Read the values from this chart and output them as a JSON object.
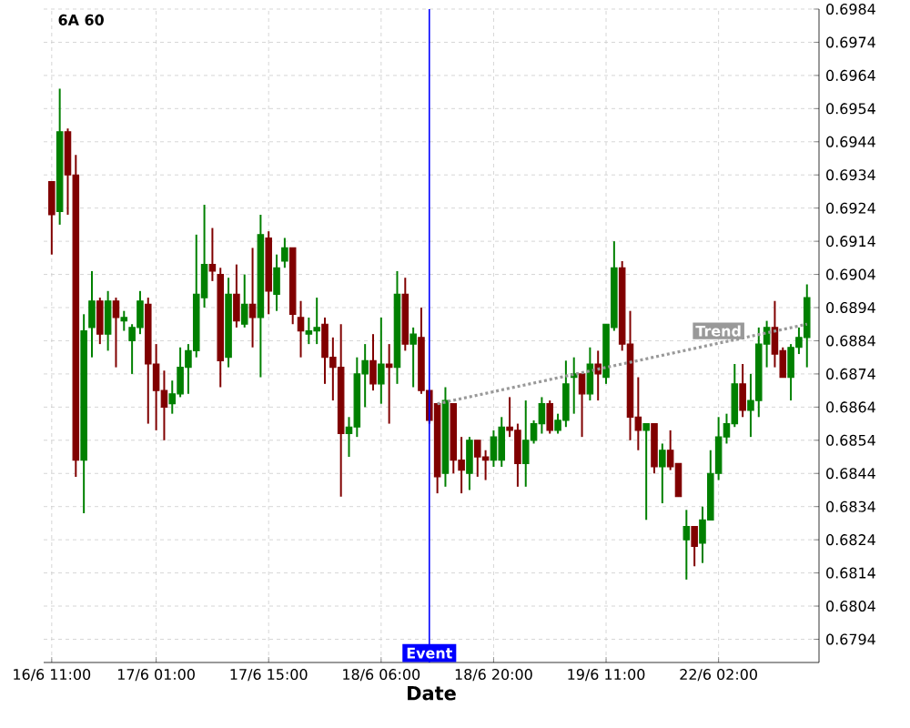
{
  "chart_data": {
    "type": "candlestick",
    "title": "6A 60",
    "xlabel": "Date",
    "categories": [
      "16/6 11:00",
      null,
      null,
      null,
      null,
      null,
      null,
      null,
      null,
      null,
      null,
      null,
      null,
      "17/6 01:00",
      null,
      null,
      null,
      null,
      null,
      null,
      null,
      null,
      null,
      null,
      null,
      null,
      null,
      "17/6 15:00",
      null,
      null,
      null,
      null,
      null,
      null,
      null,
      null,
      null,
      null,
      null,
      null,
      null,
      "18/6 06:00",
      null,
      null,
      null,
      null,
      null,
      null,
      null,
      null,
      null,
      null,
      null,
      null,
      null,
      "18/6 20:00",
      null,
      null,
      null,
      null,
      null,
      null,
      null,
      null,
      null,
      null,
      null,
      null,
      null,
      "19/6 11:00",
      null,
      null,
      null,
      null,
      null,
      null,
      null,
      null,
      null,
      null,
      null,
      null,
      null,
      "22/6 02:00",
      null,
      null,
      null,
      null,
      null,
      null,
      null,
      null,
      null,
      null,
      null
    ],
    "ohlc": [
      [
        0.6932,
        0.6932,
        0.691,
        0.6922
      ],
      [
        0.6923,
        0.696,
        0.6919,
        0.6947
      ],
      [
        0.6947,
        0.6948,
        0.6922,
        0.6934
      ],
      [
        0.6934,
        0.694,
        0.6843,
        0.6848
      ],
      [
        0.6848,
        0.6892,
        0.6832,
        0.6887
      ],
      [
        0.6888,
        0.6905,
        0.6879,
        0.6896
      ],
      [
        0.6896,
        0.6897,
        0.6883,
        0.6886
      ],
      [
        0.6886,
        0.6899,
        0.6881,
        0.6896
      ],
      [
        0.6896,
        0.6897,
        0.6876,
        0.6891
      ],
      [
        0.689,
        0.6893,
        0.6887,
        0.6891
      ],
      [
        0.6884,
        0.6889,
        0.6874,
        0.6888
      ],
      [
        0.6888,
        0.6899,
        0.6886,
        0.6896
      ],
      [
        0.6895,
        0.6897,
        0.6859,
        0.6877
      ],
      [
        0.6877,
        0.6883,
        0.6857,
        0.6869
      ],
      [
        0.6869,
        0.6875,
        0.6854,
        0.6864
      ],
      [
        0.6865,
        0.6872,
        0.6862,
        0.6868
      ],
      [
        0.6868,
        0.6882,
        0.6867,
        0.6876
      ],
      [
        0.6876,
        0.6883,
        0.6868,
        0.6881
      ],
      [
        0.6881,
        0.6916,
        0.6879,
        0.6898
      ],
      [
        0.6897,
        0.6925,
        0.6894,
        0.6907
      ],
      [
        0.6907,
        0.6918,
        0.6902,
        0.6905
      ],
      [
        0.6904,
        0.6906,
        0.687,
        0.6878
      ],
      [
        0.6879,
        0.6903,
        0.6876,
        0.6898
      ],
      [
        0.6898,
        0.6907,
        0.6888,
        0.689
      ],
      [
        0.6889,
        0.6904,
        0.6888,
        0.6895
      ],
      [
        0.6895,
        0.6912,
        0.6882,
        0.6891
      ],
      [
        0.6891,
        0.6922,
        0.6873,
        0.6916
      ],
      [
        0.6915,
        0.6917,
        0.6892,
        0.6899
      ],
      [
        0.6898,
        0.691,
        0.6893,
        0.6906
      ],
      [
        0.6908,
        0.6915,
        0.6906,
        0.6912
      ],
      [
        0.6912,
        0.6912,
        0.6889,
        0.6892
      ],
      [
        0.6891,
        0.6896,
        0.6879,
        0.6887
      ],
      [
        0.6886,
        0.6891,
        0.6883,
        0.6887
      ],
      [
        0.6887,
        0.6897,
        0.6883,
        0.6888
      ],
      [
        0.6889,
        0.6891,
        0.6871,
        0.6879
      ],
      [
        0.6879,
        0.6885,
        0.6866,
        0.6876
      ],
      [
        0.6876,
        0.6889,
        0.6837,
        0.6856
      ],
      [
        0.6856,
        0.6861,
        0.6849,
        0.6858
      ],
      [
        0.6858,
        0.6879,
        0.6855,
        0.6874
      ],
      [
        0.6874,
        0.6883,
        0.6864,
        0.6878
      ],
      [
        0.6878,
        0.6886,
        0.6869,
        0.6871
      ],
      [
        0.6871,
        0.6891,
        0.6865,
        0.6877
      ],
      [
        0.6877,
        0.6883,
        0.6859,
        0.6876
      ],
      [
        0.6876,
        0.6905,
        0.6871,
        0.6898
      ],
      [
        0.6898,
        0.6903,
        0.6881,
        0.6883
      ],
      [
        0.6883,
        0.6888,
        0.687,
        0.6886
      ],
      [
        0.6885,
        0.6894,
        0.6868,
        0.6869
      ],
      [
        0.6869,
        0.6869,
        0.6859,
        0.686
      ],
      [
        0.6865,
        0.6865,
        0.6838,
        0.6843
      ],
      [
        0.6844,
        0.687,
        0.684,
        0.6866
      ],
      [
        0.6865,
        0.6865,
        0.6844,
        0.6848
      ],
      [
        0.6848,
        0.6855,
        0.6838,
        0.6845
      ],
      [
        0.6844,
        0.6855,
        0.6839,
        0.6854
      ],
      [
        0.6854,
        0.6854,
        0.6843,
        0.6849
      ],
      [
        0.6849,
        0.6851,
        0.6842,
        0.6848
      ],
      [
        0.6848,
        0.6857,
        0.6846,
        0.6855
      ],
      [
        0.6848,
        0.6861,
        0.6846,
        0.6858
      ],
      [
        0.6858,
        0.6867,
        0.6855,
        0.6857
      ],
      [
        0.6857,
        0.6859,
        0.684,
        0.6847
      ],
      [
        0.6847,
        0.6866,
        0.684,
        0.6854
      ],
      [
        0.6854,
        0.686,
        0.6853,
        0.6859
      ],
      [
        0.6859,
        0.6867,
        0.6856,
        0.6865
      ],
      [
        0.6865,
        0.6866,
        0.6856,
        0.6857
      ],
      [
        0.6857,
        0.6862,
        0.6856,
        0.686
      ],
      [
        0.686,
        0.6878,
        0.6858,
        0.6871
      ],
      [
        0.6873,
        0.6879,
        0.6862,
        0.6874
      ],
      [
        0.6874,
        0.6874,
        0.6855,
        0.6868
      ],
      [
        0.6868,
        0.6882,
        0.6866,
        0.6877
      ],
      [
        0.6877,
        0.6881,
        0.6866,
        0.6874
      ],
      [
        0.6873,
        0.6889,
        0.6871,
        0.6889
      ],
      [
        0.6888,
        0.6914,
        0.6887,
        0.6906
      ],
      [
        0.6906,
        0.6908,
        0.6881,
        0.6883
      ],
      [
        0.6883,
        0.6893,
        0.6854,
        0.6861
      ],
      [
        0.6861,
        0.6873,
        0.6851,
        0.6857
      ],
      [
        0.6857,
        0.6859,
        0.683,
        0.6859
      ],
      [
        0.6859,
        0.6859,
        0.6844,
        0.6846
      ],
      [
        0.6846,
        0.6853,
        0.6835,
        0.6851
      ],
      [
        0.6851,
        0.6857,
        0.6845,
        0.6846
      ],
      [
        0.6847,
        0.6847,
        0.6837,
        0.6837
      ],
      [
        0.6824,
        0.6833,
        0.6812,
        0.6828
      ],
      [
        0.6828,
        0.6828,
        0.6816,
        0.6822
      ],
      [
        0.6823,
        0.6834,
        0.6817,
        0.683
      ],
      [
        0.683,
        0.6851,
        0.683,
        0.6844
      ],
      [
        0.6844,
        0.6861,
        0.6842,
        0.6855
      ],
      [
        0.6855,
        0.6862,
        0.6853,
        0.6859
      ],
      [
        0.6859,
        0.6877,
        0.6858,
        0.6871
      ],
      [
        0.6871,
        0.6877,
        0.6861,
        0.6863
      ],
      [
        0.6863,
        0.6874,
        0.6855,
        0.6866
      ],
      [
        0.6866,
        0.6888,
        0.6861,
        0.6883
      ],
      [
        0.6883,
        0.689,
        0.6876,
        0.6888
      ],
      [
        0.6888,
        0.6896,
        0.6876,
        0.688
      ],
      [
        0.6881,
        0.6882,
        0.6873,
        0.6873
      ],
      [
        0.6873,
        0.6883,
        0.6866,
        0.6882
      ],
      [
        0.6882,
        0.6888,
        0.688,
        0.6885
      ],
      [
        0.6885,
        0.6901,
        0.6876,
        0.6897
      ]
    ],
    "colors": [
      "#800000",
      "#008000",
      "#800000",
      "#800000",
      "#008000",
      "#008000",
      "#800000",
      "#008000",
      "#800000",
      "#008000",
      "#008000",
      "#008000",
      "#800000",
      "#800000",
      "#800000",
      "#008000",
      "#008000",
      "#008000",
      "#008000",
      "#008000",
      "#800000",
      "#800000",
      "#008000",
      "#800000",
      "#008000",
      "#800000",
      "#008000",
      "#800000",
      "#008000",
      "#008000",
      "#800000",
      "#800000",
      "#008000",
      "#008000",
      "#800000",
      "#800000",
      "#800000",
      "#008000",
      "#008000",
      "#008000",
      "#800000",
      "#008000",
      "#800000",
      "#008000",
      "#800000",
      "#008000",
      "#800000",
      "#800000",
      "#800000",
      "#008000",
      "#800000",
      "#800000",
      "#008000",
      "#800000",
      "#800000",
      "#008000",
      "#008000",
      "#800000",
      "#800000",
      "#008000",
      "#008000",
      "#008000",
      "#800000",
      "#008000",
      "#008000",
      "#008000",
      "#800000",
      "#008000",
      "#800000",
      "#008000",
      "#008000",
      "#800000",
      "#800000",
      "#800000",
      "#008000",
      "#800000",
      "#008000",
      "#800000",
      "#800000",
      "#008000",
      "#800000",
      "#008000",
      "#008000",
      "#008000",
      "#008000",
      "#008000",
      "#800000",
      "#008000",
      "#008000",
      "#008000",
      "#800000",
      "#800000",
      "#008000",
      "#008000",
      "#008000"
    ],
    "ylim": [
      0.6787,
      0.6984
    ],
    "yticks": [
      0.6794,
      0.6804,
      0.6814,
      0.6824,
      0.6834,
      0.6844,
      0.6854,
      0.6864,
      0.6874,
      0.6884,
      0.6894,
      0.6904,
      0.6914,
      0.6924,
      0.6934,
      0.6944,
      0.6954,
      0.6964,
      0.6974,
      0.6984
    ],
    "grid": true,
    "annotations": [
      "Event"
    ],
    "series": [
      {
        "type": "line",
        "name": "Trend",
        "values": [
          null,
          null,
          null,
          null,
          null,
          null,
          null,
          null,
          null,
          null,
          null,
          null,
          null,
          null,
          null,
          null,
          null,
          null,
          null,
          null,
          null,
          null,
          null,
          null,
          null,
          null,
          null,
          null,
          null,
          null,
          null,
          null,
          null,
          null,
          null,
          null,
          null,
          null,
          null,
          null,
          null,
          null,
          null,
          null,
          null,
          null,
          null,
          null,
          0.6865,
          null,
          null,
          null,
          null,
          null,
          null,
          null,
          null,
          null,
          null,
          null,
          null,
          null,
          null,
          null,
          null,
          null,
          null,
          null,
          null,
          null,
          null,
          null,
          null,
          null,
          null,
          null,
          null,
          null,
          null,
          null,
          null,
          null,
          null,
          null,
          null,
          null,
          null,
          null,
          null,
          null,
          null,
          null,
          null,
          null,
          0.6889
        ],
        "color": "#999999",
        "line_style": "dotted"
      }
    ]
  }
}
